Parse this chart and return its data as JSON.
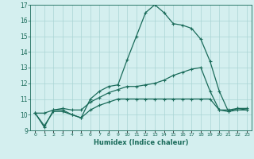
{
  "xlabel": "Humidex (Indice chaleur)",
  "x": [
    0,
    1,
    2,
    3,
    4,
    5,
    6,
    7,
    8,
    9,
    10,
    11,
    12,
    13,
    14,
    15,
    16,
    17,
    18,
    19,
    20,
    21,
    22,
    23
  ],
  "line_max": [
    10.1,
    9.2,
    10.3,
    10.3,
    10.0,
    9.8,
    11.0,
    11.5,
    11.8,
    11.9,
    13.5,
    15.0,
    16.5,
    17.0,
    16.5,
    15.8,
    15.7,
    15.5,
    14.8,
    13.4,
    11.5,
    10.2,
    10.4,
    10.3
  ],
  "line_mean": [
    10.1,
    10.1,
    10.3,
    10.4,
    10.3,
    10.3,
    10.8,
    11.1,
    11.4,
    11.6,
    11.8,
    11.8,
    11.9,
    12.0,
    12.2,
    12.5,
    12.7,
    12.9,
    13.0,
    11.5,
    10.3,
    10.3,
    10.4,
    10.4
  ],
  "line_min": [
    10.1,
    9.3,
    10.2,
    10.2,
    10.0,
    9.8,
    10.3,
    10.6,
    10.8,
    11.0,
    11.0,
    11.0,
    11.0,
    11.0,
    11.0,
    11.0,
    11.0,
    11.0,
    11.0,
    11.0,
    10.3,
    10.2,
    10.3,
    10.3
  ],
  "line_color": "#1a6b5a",
  "bg_color": "#d4efef",
  "grid_color": "#aad4d4",
  "ylim": [
    9,
    17
  ],
  "xlim": [
    -0.5,
    23.5
  ],
  "yticks": [
    9,
    10,
    11,
    12,
    13,
    14,
    15,
    16,
    17
  ],
  "xtick_labels": [
    "0",
    "1",
    "2",
    "3",
    "4",
    "5",
    "6",
    "7",
    "8",
    "9",
    "10",
    "11",
    "12",
    "13",
    "14",
    "15",
    "16",
    "17",
    "18",
    "19",
    "20",
    "21",
    "22",
    "23"
  ]
}
